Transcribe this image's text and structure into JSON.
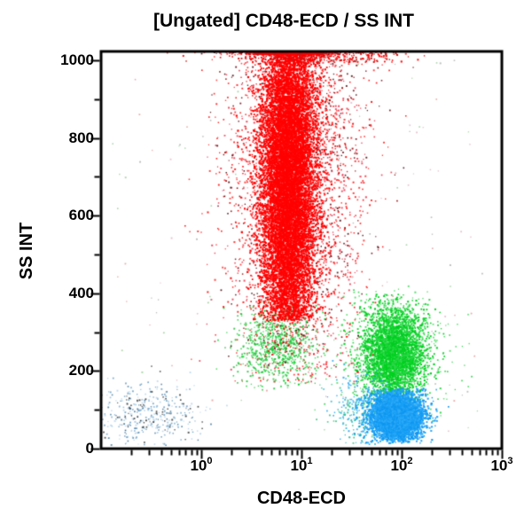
{
  "title": "[Ungated] CD48-ECD / SS INT",
  "axes": {
    "x": {
      "label": "CD48-ECD",
      "scale": "log",
      "base_label": "10",
      "tick_exponents": [
        "0",
        "1",
        "2",
        "3"
      ],
      "min_exponent": -1,
      "max_exponent": 3
    },
    "y": {
      "label": "SS INT",
      "scale": "linear",
      "min": 0,
      "max": 1023,
      "tick_values": [
        0,
        200,
        400,
        600,
        800,
        1000
      ],
      "tick_labels": [
        "0",
        "200",
        "400",
        "600",
        "800",
        "1000"
      ],
      "minor_step": 100
    }
  },
  "colors": {
    "frame": "#000000",
    "background": "#ffffff",
    "red": "#ff0000",
    "dark_red": "#8f0000",
    "green": "#00cc22",
    "blue": "#18a0f5",
    "debris_blue": "#7fb0d4"
  },
  "chart_data": {
    "type": "scatter",
    "title": "[Ungated] CD48-ECD / SS INT",
    "xlabel": "CD48-ECD",
    "ylabel": "SS INT",
    "x_scale": "log",
    "x_range_exponents": [
      -1,
      3
    ],
    "y_range": [
      0,
      1023
    ],
    "legend": "none",
    "grid": false,
    "populations": [
      {
        "name": "background-noise",
        "colors": [
          "#cc5555",
          "#55aa55",
          "#777777",
          "#cc88aa"
        ],
        "count": 150,
        "x_dist": "uniform",
        "x_log_min": -0.9,
        "x_log_max": 2.85,
        "y_dist": "uniform",
        "y_min": 30,
        "y_max": 1000,
        "alpha": 0.5,
        "size": 1.5
      },
      {
        "name": "debris-left-blue",
        "colors": [
          "#a9cde9",
          "#a9cde9",
          "#7fb0d4",
          "#5890b8",
          "#2e6890",
          "#141414"
        ],
        "count": 380,
        "x_log_mean": -0.52,
        "x_log_sd": 0.27,
        "y_mean": 85,
        "y_sd": 40,
        "y_min": 8,
        "y_max": 230,
        "alpha": 0.75,
        "size": 1.5
      },
      {
        "name": "green-tail-under-red",
        "colors": [
          "#00cc22",
          "#33d44d",
          "#2bb73e"
        ],
        "count": 800,
        "x_log_mean": 0.75,
        "x_log_sd": 0.2,
        "y_mean": 265,
        "y_sd": 55,
        "y_min": 150,
        "y_max": 380,
        "alpha": 0.85,
        "size": 1.6
      },
      {
        "name": "green-cluster-halo",
        "colors": [
          "#00cc22",
          "#33d44d"
        ],
        "count": 520,
        "x_log_mean": 1.92,
        "x_log_sd": 0.3,
        "y_mean": 245,
        "y_sd": 95,
        "y_min": 60,
        "y_max": 420,
        "alpha": 0.8,
        "size": 1.6
      },
      {
        "name": "eosinophil-green-cluster",
        "colors": [
          "#00cc22",
          "#00d41e",
          "#2bd648"
        ],
        "count": 3400,
        "x_log_mean": 1.92,
        "x_log_sd": 0.15,
        "y_mean": 245,
        "y_sd": 58,
        "y_min": 115,
        "y_max": 400,
        "alpha": 1,
        "size": 1.7
      },
      {
        "name": "neutrophil-red-halo",
        "colors": [
          "#ff0000",
          "#ff2222",
          "#e8304a"
        ],
        "count": 3000,
        "x_log_mean": 0.93,
        "x_log_sd": 0.33,
        "y_mean": 690,
        "y_sd": 285,
        "y_min": 170,
        "y_max": 1023,
        "pileup_top": true,
        "alpha": 0.85,
        "size": 1.6
      },
      {
        "name": "red-dark-specks",
        "colors": [
          "#8f0000",
          "#6e0e1e",
          "#4a0a10"
        ],
        "count": 800,
        "x_log_mean": 0.95,
        "x_log_sd": 0.33,
        "y_mean": 700,
        "y_sd": 280,
        "y_min": 200,
        "y_max": 1023,
        "pileup_top": true,
        "alpha": 0.9,
        "size": 1.5
      },
      {
        "name": "neutrophil-red-cluster",
        "colors": [
          "#ff0000"
        ],
        "count": 12000,
        "x_log_mean": 0.87,
        "x_log_sd": 0.14,
        "y_mean": 700,
        "y_sd": 245,
        "y_min": 330,
        "y_max": 1023,
        "pileup_top": true,
        "alpha": 1,
        "size": 1.8
      },
      {
        "name": "red-top-pileup-band",
        "colors": [
          "#ff0000",
          "#cc1111"
        ],
        "count": 320,
        "x_log_mean": 1.15,
        "x_log_sd": 0.42,
        "y_dist": "uniform",
        "y_min": 995,
        "y_max": 1023,
        "alpha": 0.95,
        "size": 1.7
      },
      {
        "name": "blue-left-fringe",
        "colors": [
          "#18a0f5",
          "#27b5c8",
          "#2fbf7f"
        ],
        "count": 380,
        "x_log_mean": 1.63,
        "x_log_sd": 0.17,
        "y_mean": 100,
        "y_sd": 48,
        "y_min": 10,
        "y_max": 230,
        "alpha": 0.85,
        "size": 1.6
      },
      {
        "name": "lymphocyte-blue-cluster",
        "colors": [
          "#18a0f5",
          "#0e96f0",
          "#2faaf8"
        ],
        "count": 5200,
        "x_log_mean": 1.95,
        "x_log_sd": 0.125,
        "y_mean": 85,
        "y_sd": 30,
        "y_min": 14,
        "y_max": 155,
        "alpha": 1,
        "size": 1.8
      }
    ]
  }
}
